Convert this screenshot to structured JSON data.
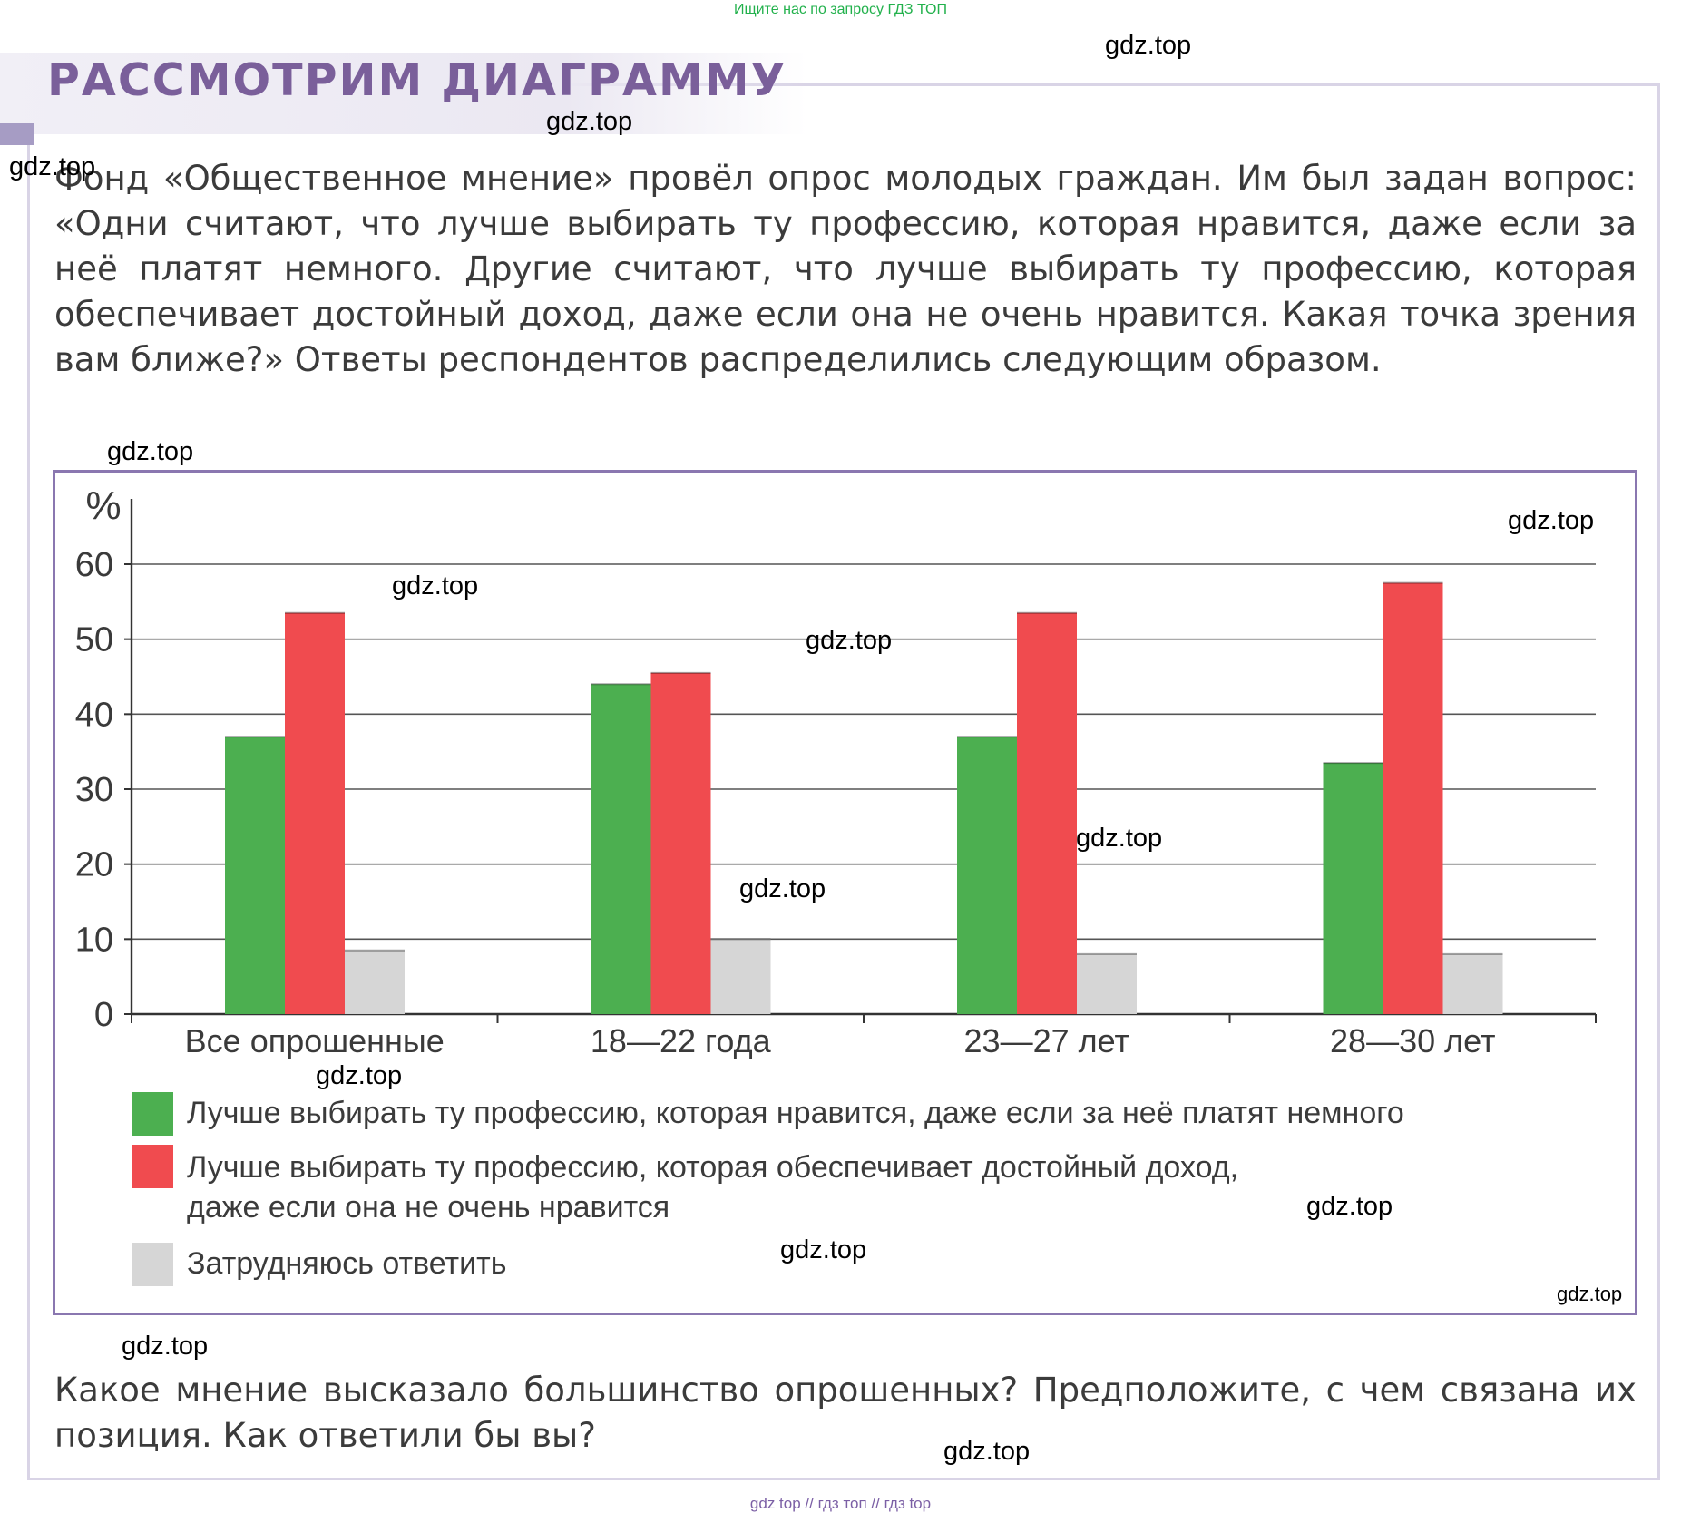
{
  "header": {
    "top_banner": "Ищите нас по запросу ГДЗ ТОП",
    "heading": "РАССМОТРИМ ДИАГРАММУ"
  },
  "intro_text": "Фонд «Общественное мнение» провёл опрос молодых граждан. Им был задан вопрос: «Одни считают, что лучше выбирать ту профессию, которая нравится, даже если за неё платят немного. Другие считают, что лучше выбирать ту профессию, которая обеспечивает достойный доход, даже если она не очень нравится. Какая точка зрения вам ближе?» Ответы респондентов распределились следующим образом.",
  "chart_data": {
    "type": "bar",
    "ylabel": "%",
    "ylim": [
      0,
      60
    ],
    "yticks": [
      "0",
      "10",
      "20",
      "30",
      "40",
      "50",
      "60"
    ],
    "grid": true,
    "legend_position": "bottom",
    "categories": [
      "Все опрошенные",
      "18—22 года",
      "23—27 лет",
      "28—30 лет"
    ],
    "series": [
      {
        "name": "Лучше выбирать ту профессию, которая нравится, даже если за неё платят немного",
        "color": "#4caf50",
        "values": [
          37,
          44,
          37,
          33.5
        ]
      },
      {
        "name": "Лучше выбирать ту профессию, которая обеспечивает достойный доход, даже если она не очень нравится",
        "color": "#f04b4f",
        "values": [
          53.5,
          45.5,
          53.5,
          57.5
        ]
      },
      {
        "name": "Затрудняюсь ответить",
        "color": "#d6d6d6",
        "values": [
          8.5,
          10,
          8,
          8
        ]
      }
    ]
  },
  "legend": {
    "item1": "Лучше выбирать ту профессию, которая  нравится, даже если за неё платят немного",
    "item2_line1": "Лучше выбирать ту профессию, которая обеспечивает достойный доход,",
    "item2_line2": "даже если она не очень нравится",
    "item3": "Затрудняюсь  ответить"
  },
  "question_text": "Какое мнение высказало большинство опрошенных? Предположите, с чем связана их позиция. Как ответили бы вы?",
  "watermark": "gdz.top",
  "footer": "gdz top  //  гдз топ  //  гдз top"
}
